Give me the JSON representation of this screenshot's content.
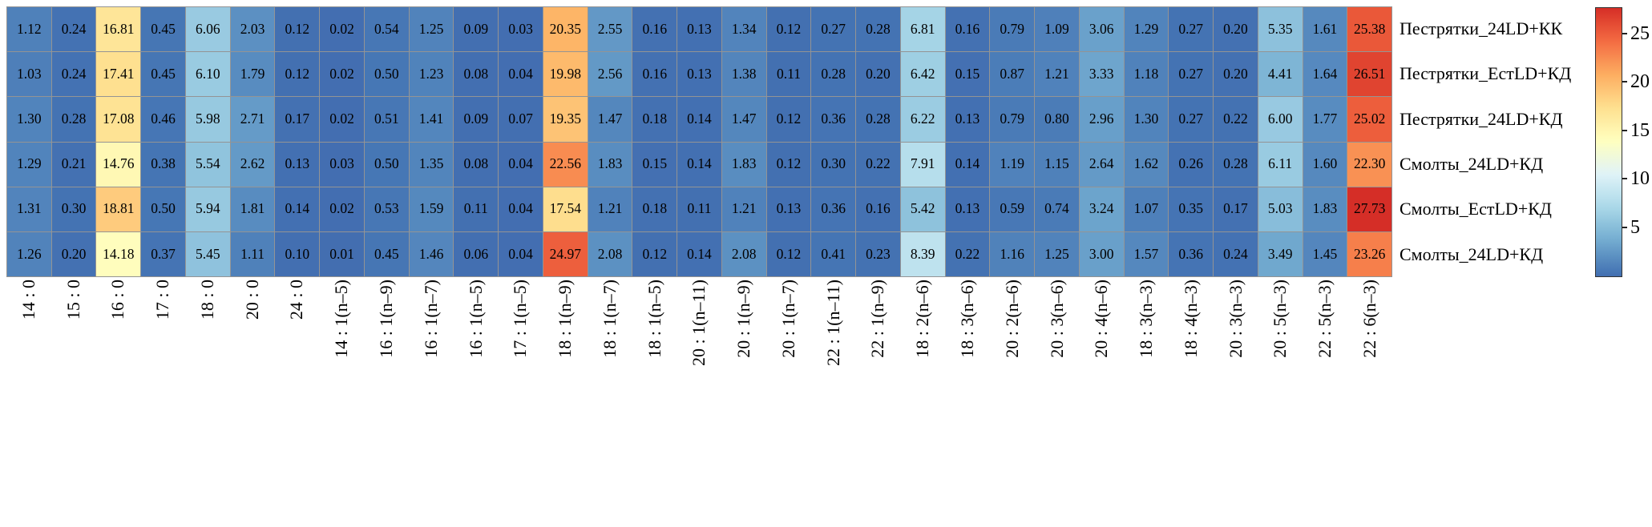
{
  "chart_data": {
    "type": "heatmap",
    "title": "",
    "x_tick_labels": [
      "14 : 0",
      "15 : 0",
      "16 : 0",
      "17 : 0",
      "18 : 0",
      "20 : 0",
      "24 : 0",
      "14 : 1(n–5)",
      "16 : 1(n–9)",
      "16 : 1(n–7)",
      "16 : 1(n–5)",
      "17 : 1(n–5)",
      "18 : 1(n–9)",
      "18 : 1(n–7)",
      "18 : 1(n–5)",
      "20 : 1(n–11)",
      "20 : 1(n–9)",
      "20 : 1(n–7)",
      "22 : 1(n–11)",
      "22 : 1(n–9)",
      "18 : 2(n–6)",
      "18 : 3(n–6)",
      "20 : 2(n–6)",
      "20 : 3(n–6)",
      "20 : 4(n–6)",
      "18 : 3(n–3)",
      "18 : 4(n–3)",
      "20 : 3(n–3)",
      "20 : 5(n–3)",
      "22 : 5(n–3)",
      "22 : 6(n–3)"
    ],
    "y_tick_labels": [
      "Пестрятки_24LD+КК",
      "Пестрятки_ЕстLD+КД",
      "Пестрятки_24LD+КД",
      "Смолты_24LD+КД",
      "Смолты_ЕстLD+КД",
      "Смолты_24LD+КД"
    ],
    "values": [
      [
        1.12,
        0.24,
        16.81,
        0.45,
        6.06,
        2.03,
        0.12,
        0.02,
        0.54,
        1.25,
        0.09,
        0.03,
        20.35,
        2.55,
        0.16,
        0.13,
        1.34,
        0.12,
        0.27,
        0.28,
        6.81,
        0.16,
        0.79,
        1.09,
        3.06,
        1.29,
        0.27,
        0.2,
        5.35,
        1.61,
        25.38
      ],
      [
        1.03,
        0.24,
        17.41,
        0.45,
        6.1,
        1.79,
        0.12,
        0.02,
        0.5,
        1.23,
        0.08,
        0.04,
        19.98,
        2.56,
        0.16,
        0.13,
        1.38,
        0.11,
        0.28,
        0.2,
        6.42,
        0.15,
        0.87,
        1.21,
        3.33,
        1.18,
        0.27,
        0.2,
        4.41,
        1.64,
        26.51
      ],
      [
        1.3,
        0.28,
        17.08,
        0.46,
        5.98,
        2.71,
        0.17,
        0.02,
        0.51,
        1.41,
        0.09,
        0.07,
        19.35,
        1.47,
        0.18,
        0.14,
        1.47,
        0.12,
        0.36,
        0.28,
        6.22,
        0.13,
        0.79,
        0.8,
        2.96,
        1.3,
        0.27,
        0.22,
        6.0,
        1.77,
        25.02
      ],
      [
        1.29,
        0.21,
        14.76,
        0.38,
        5.54,
        2.62,
        0.13,
        0.03,
        0.5,
        1.35,
        0.08,
        0.04,
        22.56,
        1.83,
        0.15,
        0.14,
        1.83,
        0.12,
        0.3,
        0.22,
        7.91,
        0.14,
        1.19,
        1.15,
        2.64,
        1.62,
        0.26,
        0.28,
        6.11,
        1.6,
        22.3
      ],
      [
        1.31,
        0.3,
        18.81,
        0.5,
        5.94,
        1.81,
        0.14,
        0.02,
        0.53,
        1.59,
        0.11,
        0.04,
        17.54,
        1.21,
        0.18,
        0.11,
        1.21,
        0.13,
        0.36,
        0.16,
        5.42,
        0.13,
        0.59,
        0.74,
        3.24,
        1.07,
        0.35,
        0.17,
        5.03,
        1.83,
        27.73
      ],
      [
        1.26,
        0.2,
        14.18,
        0.37,
        5.45,
        1.11,
        0.1,
        0.01,
        0.45,
        1.46,
        0.06,
        0.04,
        24.97,
        2.08,
        0.12,
        0.14,
        2.08,
        0.12,
        0.41,
        0.23,
        8.39,
        0.22,
        1.16,
        1.25,
        3.0,
        1.57,
        0.36,
        0.24,
        3.49,
        1.45,
        23.26
      ]
    ],
    "value_format": "2-decimal",
    "colorbar": {
      "orientation": "vertical",
      "ticks": [
        25,
        20,
        15,
        10,
        5
      ]
    },
    "colormap": {
      "name": "RdYlBu_r",
      "anchors_low_to_high": [
        "#313695",
        "#4575b4",
        "#74add1",
        "#abd9e9",
        "#e0f3f8",
        "#ffffbf",
        "#fee090",
        "#fdae61",
        "#f46d43",
        "#d73027",
        "#a50026"
      ]
    },
    "grid_line_color": "#949494",
    "text_color": "#000000"
  }
}
